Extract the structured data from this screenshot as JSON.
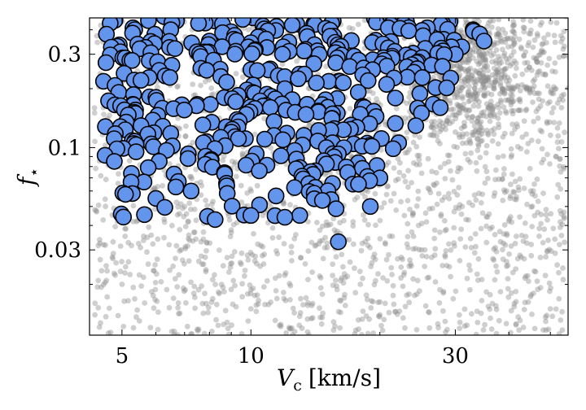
{
  "chart_data": {
    "type": "scatter",
    "xlabel_main": "V",
    "xlabel_sub": "c",
    "xlabel_units": "[km/s]",
    "ylabel_main": "f",
    "ylabel_sub": "⋆",
    "xscale": "log",
    "yscale": "log",
    "xlim": [
      4.2,
      55
    ],
    "ylim": [
      0.011,
      0.46
    ],
    "xticks": [
      {
        "value": 5,
        "label": "5"
      },
      {
        "value": 10,
        "label": "10"
      },
      {
        "value": 30,
        "label": "30"
      }
    ],
    "yticks": [
      {
        "value": 0.03,
        "label": "0.03"
      },
      {
        "value": 0.1,
        "label": "0.1"
      },
      {
        "value": 0.3,
        "label": "0.3"
      }
    ],
    "grid": false,
    "series": [
      {
        "role": "background",
        "color": "#8c8c8c",
        "count": 2600,
        "points": [
          [
            5.0,
            0.02
          ],
          [
            7.0,
            0.05
          ],
          [
            10.0,
            0.015
          ],
          [
            15.0,
            0.04
          ],
          [
            20.0,
            0.08
          ],
          [
            30.0,
            0.12
          ],
          [
            35.0,
            0.3
          ],
          [
            40.0,
            0.2
          ],
          [
            25.0,
            0.03
          ],
          [
            12.0,
            0.1
          ],
          [
            45.0,
            0.06
          ],
          [
            50.0,
            0.015
          ],
          [
            8.0,
            0.25
          ],
          [
            32.0,
            0.38
          ],
          [
            18.0,
            0.02
          ]
        ]
      },
      {
        "role": "highlighted",
        "color": "#6495ed",
        "edgecolor": "#000000",
        "count": 430,
        "points": [
          [
            4.6,
            0.38
          ],
          [
            5.5,
            0.32
          ],
          [
            6.5,
            0.4
          ],
          [
            8.0,
            0.35
          ],
          [
            10.0,
            0.25
          ],
          [
            12.0,
            0.2
          ],
          [
            15.0,
            0.1
          ],
          [
            20.0,
            0.07
          ],
          [
            25.0,
            0.15
          ],
          [
            30.0,
            0.3
          ],
          [
            35.0,
            0.35
          ],
          [
            4.8,
            0.085
          ],
          [
            6.0,
            0.055
          ],
          [
            10.0,
            0.045
          ],
          [
            13.0,
            0.045
          ],
          [
            16.0,
            0.033
          ],
          [
            19.0,
            0.05
          ],
          [
            28.0,
            0.26
          ],
          [
            33.0,
            0.4
          ],
          [
            9.0,
            0.12
          ]
        ]
      }
    ]
  }
}
